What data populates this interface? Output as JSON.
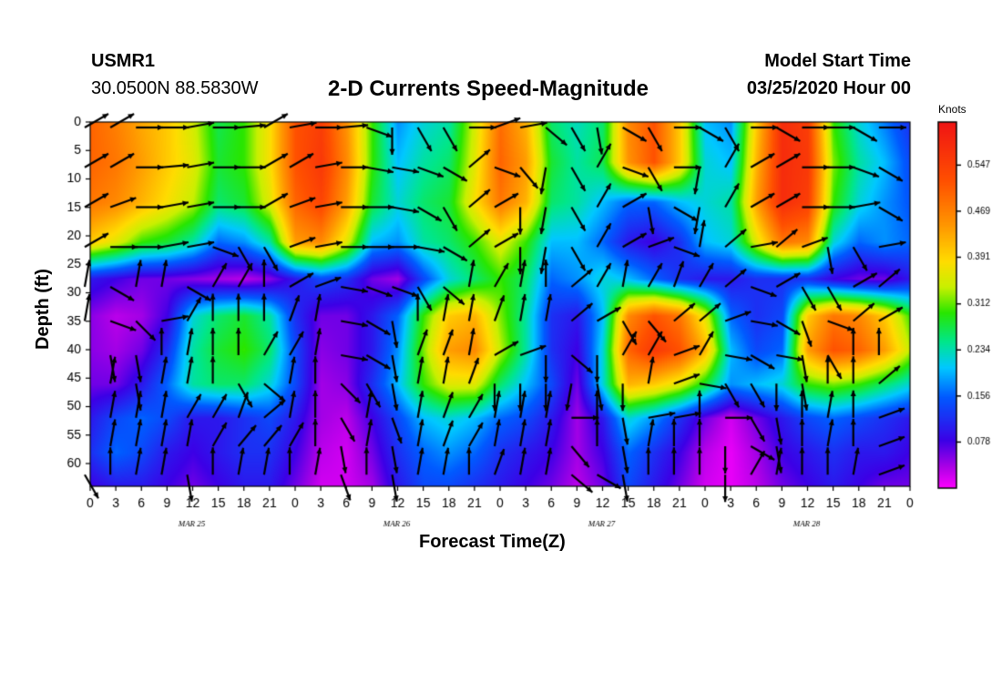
{
  "header": {
    "station": "USMR1",
    "coords": "30.0500N 88.5830W",
    "title": "2-D Currents Speed-Magnitude",
    "model_start_label": "Model Start Time",
    "model_start_value": "03/25/2020 Hour 00"
  },
  "chart_data": {
    "type": "heatmap",
    "title": "2-D Currents Speed-Magnitude",
    "xlabel": "Forecast Time(Z)",
    "ylabel": "Depth (ft)",
    "colorbar_label": "Knots",
    "colorbar_ticks": [
      "0.547",
      "0.469",
      "0.391",
      "0.312",
      "0.234",
      "0.156",
      "0.078"
    ],
    "colorbar_range": [
      0,
      0.62
    ],
    "x_tick_labels": [
      "0",
      "3",
      "6",
      "9",
      "12",
      "15",
      "18",
      "21",
      "0",
      "3",
      "6",
      "9",
      "12",
      "15",
      "18",
      "21",
      "0",
      "3",
      "6",
      "9",
      "12",
      "15",
      "18",
      "21",
      "0",
      "3",
      "6",
      "9",
      "12",
      "15",
      "18",
      "21",
      "0"
    ],
    "date_labels": [
      "MAR 25",
      "MAR 26",
      "MAR 27",
      "MAR 28"
    ],
    "y_ticks": [
      0,
      5,
      10,
      15,
      20,
      25,
      30,
      35,
      40,
      45,
      50,
      55,
      60
    ],
    "xlim_hours": [
      0,
      96
    ],
    "ylim_ft": [
      0,
      64
    ],
    "depth_rows": [
      0,
      7,
      14,
      21,
      27.5,
      34,
      40,
      46,
      52,
      58,
      64
    ],
    "speed": [
      [
        0.5,
        0.47,
        0.43,
        0.4,
        0.35,
        0.27,
        0.3,
        0.38,
        0.52,
        0.55,
        0.45,
        0.3,
        0.18,
        0.22,
        0.24,
        0.35,
        0.49,
        0.42,
        0.26,
        0.23,
        0.26,
        0.46,
        0.52,
        0.4,
        0.2,
        0.18,
        0.4,
        0.58,
        0.55,
        0.3,
        0.22,
        0.17,
        0.12
      ],
      [
        0.5,
        0.48,
        0.44,
        0.4,
        0.36,
        0.28,
        0.3,
        0.38,
        0.52,
        0.56,
        0.46,
        0.3,
        0.2,
        0.24,
        0.26,
        0.36,
        0.5,
        0.44,
        0.28,
        0.24,
        0.27,
        0.45,
        0.52,
        0.4,
        0.22,
        0.2,
        0.42,
        0.58,
        0.56,
        0.32,
        0.24,
        0.2,
        0.14
      ],
      [
        0.48,
        0.46,
        0.42,
        0.38,
        0.34,
        0.26,
        0.28,
        0.36,
        0.5,
        0.54,
        0.44,
        0.28,
        0.22,
        0.26,
        0.28,
        0.38,
        0.48,
        0.42,
        0.26,
        0.24,
        0.2,
        0.16,
        0.16,
        0.2,
        0.22,
        0.24,
        0.44,
        0.58,
        0.55,
        0.3,
        0.22,
        0.18,
        0.15
      ],
      [
        0.4,
        0.36,
        0.3,
        0.28,
        0.24,
        0.16,
        0.18,
        0.24,
        0.44,
        0.46,
        0.36,
        0.2,
        0.18,
        0.24,
        0.26,
        0.3,
        0.36,
        0.3,
        0.2,
        0.2,
        0.16,
        0.1,
        0.08,
        0.12,
        0.2,
        0.22,
        0.36,
        0.48,
        0.46,
        0.22,
        0.16,
        0.18,
        0.16
      ],
      [
        0.1,
        0.08,
        0.06,
        0.06,
        0.05,
        0.04,
        0.03,
        0.05,
        0.1,
        0.14,
        0.12,
        0.06,
        0.04,
        0.14,
        0.22,
        0.26,
        0.3,
        0.26,
        0.16,
        0.18,
        0.22,
        0.2,
        0.16,
        0.12,
        0.1,
        0.1,
        0.12,
        0.12,
        0.12,
        0.08,
        0.06,
        0.06,
        0.1
      ],
      [
        0.05,
        0.03,
        0.04,
        0.08,
        0.22,
        0.26,
        0.28,
        0.24,
        0.12,
        0.06,
        0.06,
        0.1,
        0.16,
        0.3,
        0.4,
        0.42,
        0.32,
        0.24,
        0.12,
        0.1,
        0.2,
        0.46,
        0.52,
        0.48,
        0.36,
        0.16,
        0.12,
        0.14,
        0.4,
        0.48,
        0.46,
        0.4,
        0.3
      ],
      [
        0.05,
        0.04,
        0.06,
        0.12,
        0.24,
        0.28,
        0.3,
        0.26,
        0.14,
        0.05,
        0.06,
        0.1,
        0.18,
        0.32,
        0.44,
        0.46,
        0.34,
        0.24,
        0.12,
        0.08,
        0.22,
        0.5,
        0.56,
        0.52,
        0.42,
        0.2,
        0.14,
        0.16,
        0.44,
        0.52,
        0.5,
        0.44,
        0.34
      ],
      [
        0.06,
        0.06,
        0.1,
        0.16,
        0.24,
        0.26,
        0.26,
        0.22,
        0.14,
        0.04,
        0.05,
        0.12,
        0.2,
        0.3,
        0.36,
        0.36,
        0.26,
        0.2,
        0.14,
        0.06,
        0.22,
        0.42,
        0.4,
        0.36,
        0.28,
        0.18,
        0.2,
        0.22,
        0.3,
        0.32,
        0.3,
        0.26,
        0.22
      ],
      [
        0.1,
        0.14,
        0.16,
        0.14,
        0.1,
        0.1,
        0.12,
        0.14,
        0.1,
        0.04,
        0.03,
        0.08,
        0.14,
        0.2,
        0.22,
        0.2,
        0.16,
        0.14,
        0.1,
        0.04,
        0.1,
        0.22,
        0.18,
        0.12,
        0.06,
        0.02,
        0.06,
        0.1,
        0.14,
        0.16,
        0.14,
        0.12,
        0.1
      ],
      [
        0.12,
        0.16,
        0.14,
        0.1,
        0.08,
        0.1,
        0.12,
        0.12,
        0.08,
        0.03,
        0.02,
        0.06,
        0.12,
        0.16,
        0.18,
        0.16,
        0.12,
        0.1,
        0.08,
        0.04,
        0.08,
        0.16,
        0.12,
        0.08,
        0.03,
        0.01,
        0.04,
        0.08,
        0.1,
        0.12,
        0.1,
        0.1,
        0.08
      ],
      [
        0.08,
        0.1,
        0.1,
        0.08,
        0.06,
        0.08,
        0.1,
        0.1,
        0.06,
        0.02,
        0.02,
        0.04,
        0.1,
        0.14,
        0.14,
        0.12,
        0.1,
        0.08,
        0.06,
        0.03,
        0.06,
        0.14,
        0.1,
        0.06,
        0.02,
        0.01,
        0.03,
        0.06,
        0.08,
        0.1,
        0.08,
        0.06,
        0.06
      ]
    ],
    "arrow_depths": [
      0,
      7,
      14,
      21,
      28,
      34,
      40,
      45,
      51,
      56,
      61
    ],
    "arrow_dir_deg": [
      [
        30,
        30,
        0,
        0,
        10,
        0,
        5,
        30,
        10,
        0,
        5,
        -20,
        -90,
        -60,
        -60,
        0,
        20,
        10,
        -40,
        -60,
        -80,
        -30,
        -60,
        0,
        -30,
        -60,
        0,
        -30,
        0,
        0,
        -30,
        0,
        -60
      ],
      [
        30,
        30,
        0,
        5,
        10,
        0,
        0,
        30,
        30,
        10,
        0,
        -10,
        -10,
        -20,
        -30,
        40,
        -20,
        -50,
        -100,
        -60,
        60,
        -20,
        -60,
        0,
        -100,
        60,
        30,
        30,
        0,
        0,
        -20,
        -30,
        -60
      ],
      [
        30,
        20,
        0,
        10,
        10,
        0,
        0,
        30,
        20,
        10,
        0,
        0,
        -10,
        -30,
        -60,
        40,
        30,
        -90,
        -100,
        -60,
        60,
        30,
        -80,
        -30,
        -100,
        60,
        30,
        30,
        0,
        0,
        10,
        -30,
        -60
      ],
      [
        30,
        0,
        0,
        10,
        10,
        -20,
        -60,
        -60,
        20,
        10,
        0,
        0,
        0,
        -10,
        -30,
        40,
        30,
        -90,
        -100,
        -60,
        60,
        30,
        20,
        -20,
        80,
        40,
        10,
        40,
        20,
        -80,
        -60,
        10,
        -30
      ],
      [
        80,
        -30,
        80,
        80,
        -30,
        60,
        60,
        90,
        30,
        20,
        -10,
        -20,
        -20,
        -60,
        -40,
        80,
        60,
        80,
        90,
        40,
        60,
        80,
        60,
        70,
        60,
        40,
        -20,
        30,
        -60,
        -60,
        30,
        40,
        30
      ],
      [
        80,
        -20,
        -45,
        10,
        60,
        90,
        90,
        90,
        70,
        80,
        -10,
        -30,
        -80,
        90,
        80,
        80,
        70,
        80,
        80,
        40,
        30,
        -60,
        -50,
        40,
        40,
        20,
        -10,
        -30,
        -70,
        -20,
        40,
        30,
        60
      ],
      [
        90,
        -80,
        -80,
        90,
        80,
        90,
        90,
        60,
        60,
        80,
        -10,
        -30,
        -80,
        70,
        70,
        80,
        30,
        20,
        -90,
        -40,
        -90,
        60,
        60,
        20,
        60,
        -10,
        -30,
        -10,
        -80,
        -60,
        90,
        90,
        20
      ],
      [
        90,
        80,
        -80,
        80,
        80,
        90,
        -60,
        -40,
        80,
        90,
        -45,
        -60,
        -80,
        80,
        80,
        70,
        -90,
        -90,
        -90,
        -100,
        -80,
        -90,
        80,
        20,
        -10,
        -60,
        -60,
        -90,
        -80,
        90,
        90,
        40,
        20
      ],
      [
        90,
        80,
        80,
        80,
        60,
        60,
        70,
        40,
        80,
        90,
        -60,
        80,
        -70,
        80,
        70,
        60,
        80,
        80,
        80,
        0,
        90,
        -80,
        10,
        10,
        90,
        0,
        -60,
        -80,
        90,
        80,
        90,
        20,
        -10
      ],
      [
        90,
        80,
        80,
        80,
        80,
        60,
        50,
        50,
        60,
        90,
        -80,
        80,
        -80,
        80,
        70,
        60,
        80,
        80,
        80,
        -50,
        90,
        -80,
        80,
        90,
        90,
        -90,
        -30,
        -80,
        90,
        80,
        90,
        20,
        -30
      ],
      [
        -60,
        90,
        80,
        80,
        -80,
        90,
        80,
        80,
        90,
        80,
        -70,
        90,
        -80,
        80,
        80,
        90,
        70,
        80,
        80,
        -40,
        -30,
        -80,
        90,
        90,
        90,
        -90,
        60,
        80,
        90,
        90,
        80,
        20,
        -30
      ]
    ]
  }
}
